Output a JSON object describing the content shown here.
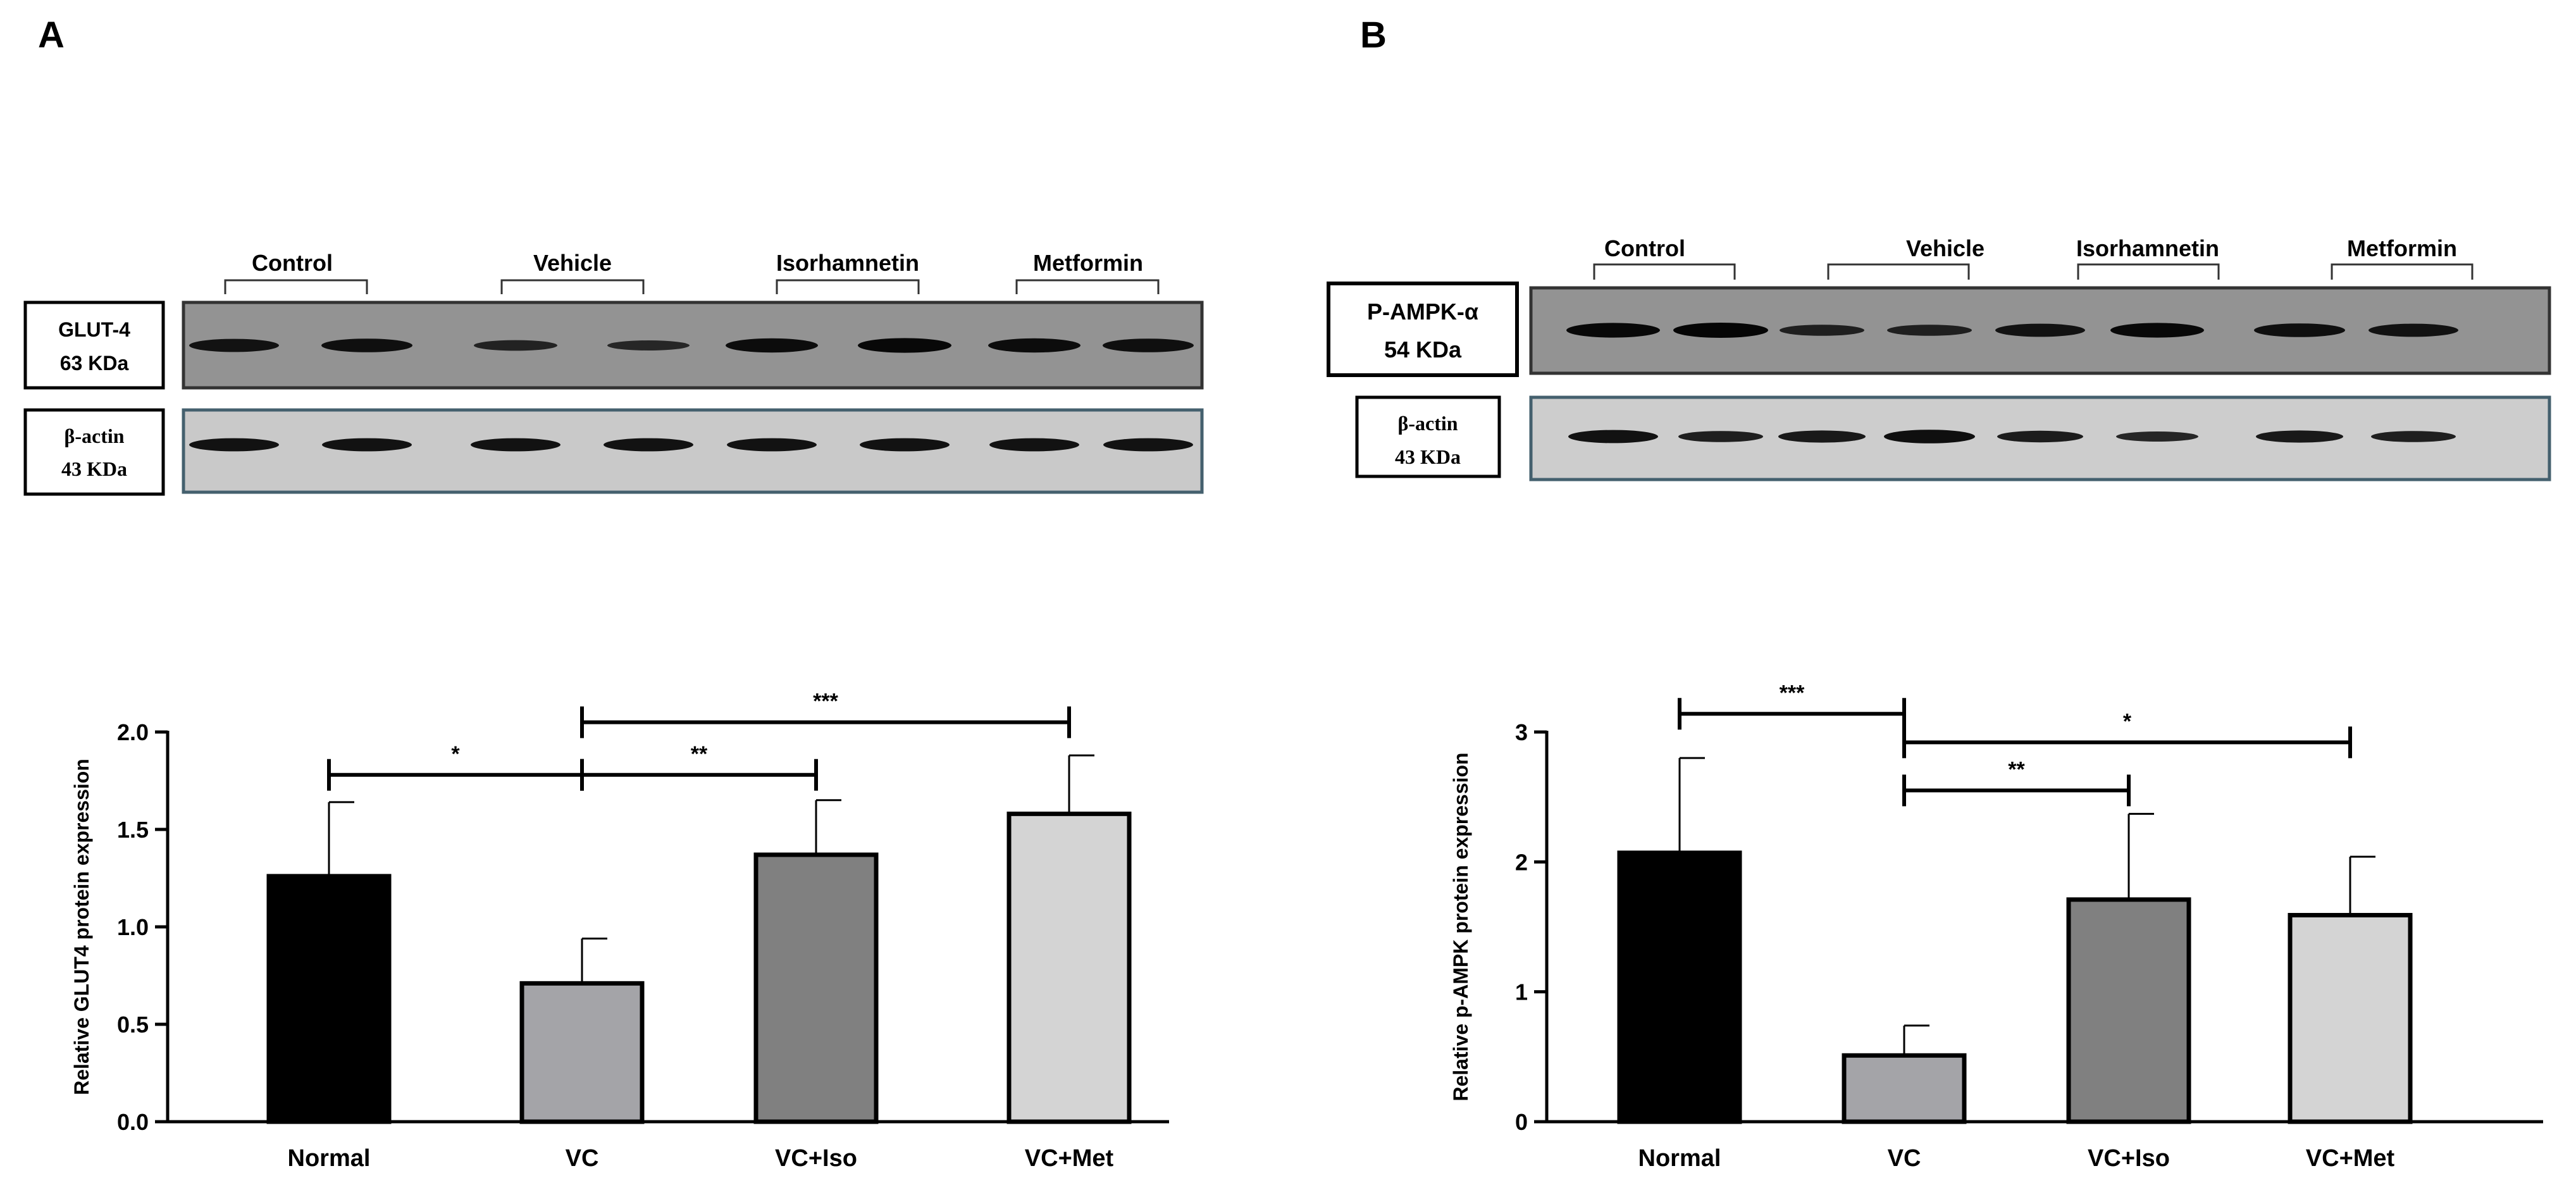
{
  "panels": [
    {
      "letter": "A",
      "blot": {
        "groups": [
          "Control",
          "Vehicle",
          "Isorhamnetin",
          "Metformin"
        ],
        "target_name": "GLUT-4",
        "target_kda": "63 KDa",
        "actin_name": "β-actin",
        "actin_kda": "43 KDa",
        "target_band_intensity": [
          0.8,
          0.85,
          0.55,
          0.5,
          0.9,
          0.95,
          0.9,
          0.85
        ],
        "actin_band_intensity": [
          0.8,
          0.8,
          0.8,
          0.8,
          0.8,
          0.8,
          0.8,
          0.8
        ]
      }
    },
    {
      "letter": "B",
      "blot": {
        "groups": [
          "Control",
          "Vehicle",
          "Isorhamnetin",
          "Metformin"
        ],
        "target_name": "P-AMPK-α",
        "target_kda": "54 KDa",
        "actin_name": "β-actin",
        "actin_kda": "43 KDa",
        "target_band_intensity": [
          0.95,
          1.0,
          0.6,
          0.6,
          0.8,
          0.95,
          0.85,
          0.8
        ],
        "actin_band_intensity": [
          0.8,
          0.6,
          0.7,
          0.85,
          0.65,
          0.5,
          0.7,
          0.6
        ]
      }
    }
  ],
  "chart_data": [
    {
      "type": "bar",
      "title": "",
      "xlabel": "",
      "ylabel": "Relative GLUT4 protein expression",
      "categories": [
        "Normal",
        "VC",
        "VC+Iso",
        "VC+Met"
      ],
      "values": [
        1.26,
        0.71,
        1.37,
        1.58
      ],
      "errors": [
        0.38,
        0.23,
        0.28,
        0.3
      ],
      "colors": [
        "#000000",
        "#a4a4a8",
        "#808080",
        "#d4d4d4"
      ],
      "ylim": [
        0,
        2.0
      ],
      "yticks": [
        "0.0",
        "0.5",
        "1.0",
        "1.5",
        "2.0"
      ],
      "ytick_values": [
        0,
        0.5,
        1.0,
        1.5,
        2.0
      ],
      "significance": [
        {
          "from": 0,
          "to": 1,
          "label": "*",
          "level": 1.78
        },
        {
          "from": 1,
          "to": 2,
          "label": "**",
          "level": 1.78
        },
        {
          "from": 1,
          "to": 3,
          "label": "***",
          "level": 2.05
        }
      ]
    },
    {
      "type": "bar",
      "title": "",
      "xlabel": "",
      "ylabel": "Relative p-AMPK protein expression",
      "categories": [
        "Normal",
        "VC",
        "VC+Iso",
        "VC+Met"
      ],
      "values": [
        2.07,
        0.51,
        1.71,
        1.59
      ],
      "errors": [
        0.73,
        0.23,
        0.66,
        0.45
      ],
      "colors": [
        "#000000",
        "#a4a4a8",
        "#808080",
        "#d4d4d4"
      ],
      "ylim": [
        0,
        3
      ],
      "yticks": [
        "0",
        "1",
        "2",
        "3"
      ],
      "ytick_values": [
        0,
        1,
        2,
        3
      ],
      "significance": [
        {
          "from": 0,
          "to": 1,
          "label": "***",
          "level": 3.14
        },
        {
          "from": 1,
          "to": 3,
          "label": "*",
          "level": 2.92
        },
        {
          "from": 1,
          "to": 2,
          "label": "**",
          "level": 2.55
        }
      ]
    }
  ]
}
